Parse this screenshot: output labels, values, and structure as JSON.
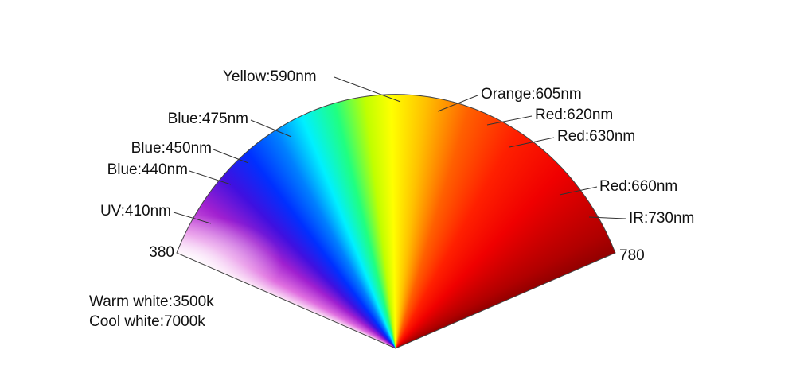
{
  "labels": [
    {
      "text": "Yellow:590nm"
    },
    {
      "text": "Orange:605nm"
    },
    {
      "text": "Red:620nm"
    },
    {
      "text": "Red:630nm"
    },
    {
      "text": "Red:660nm"
    },
    {
      "text": "IR:730nm"
    },
    {
      "text": "Blue:475nm"
    },
    {
      "text": "Blue:450nm"
    },
    {
      "text": "Blue:440nm"
    },
    {
      "text": "UV:410nm"
    }
  ],
  "range": {
    "start": "380",
    "end": "780"
  },
  "notes": [
    "Warm white:3500k",
    "Cool white:7000k"
  ]
}
